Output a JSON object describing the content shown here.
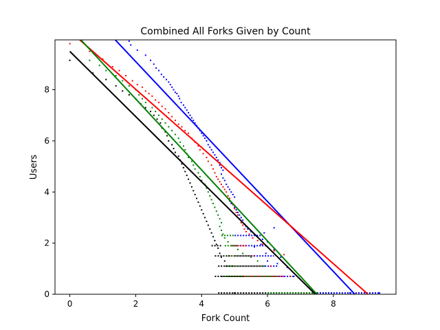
{
  "chart_data": {
    "type": "scatter",
    "title": "Combined All Forks Given by Count",
    "xlabel": "Fork Count",
    "ylabel": "Users",
    "xlim": [
      -0.45,
      9.9
    ],
    "ylim": [
      0,
      9.95
    ],
    "x_ticks": [
      "0",
      "2",
      "4",
      "6",
      "8"
    ],
    "y_ticks": [
      "0",
      "2",
      "4",
      "6",
      "8"
    ],
    "grid": false,
    "legend": "none",
    "series": [
      {
        "color": "#0000ff",
        "points": [
          [
            1.8,
            9.9
          ],
          [
            1.85,
            9.75
          ],
          [
            2.05,
            9.55
          ],
          [
            2.3,
            9.35
          ],
          [
            2.45,
            9.15
          ],
          [
            2.55,
            9.0
          ],
          [
            2.62,
            8.85
          ],
          [
            2.7,
            8.75
          ],
          [
            2.78,
            8.6
          ],
          [
            2.85,
            8.5
          ],
          [
            2.93,
            8.4
          ],
          [
            3.0,
            8.3
          ],
          [
            3.05,
            8.2
          ],
          [
            3.1,
            8.1
          ],
          [
            3.15,
            8.0
          ],
          [
            3.2,
            7.9
          ],
          [
            3.25,
            7.85
          ],
          [
            3.3,
            7.75
          ],
          [
            3.33,
            7.65
          ],
          [
            3.38,
            7.5
          ],
          [
            3.45,
            7.4
          ],
          [
            3.5,
            7.3
          ],
          [
            3.55,
            7.2
          ],
          [
            3.6,
            7.1
          ],
          [
            3.65,
            7.0
          ],
          [
            3.7,
            6.9
          ],
          [
            3.75,
            6.8
          ],
          [
            3.8,
            6.7
          ],
          [
            3.85,
            6.6
          ],
          [
            3.9,
            6.5
          ],
          [
            3.95,
            6.4
          ],
          [
            4.0,
            6.3
          ],
          [
            4.05,
            6.2
          ],
          [
            4.1,
            6.1
          ],
          [
            4.15,
            6.0
          ],
          [
            4.2,
            5.85
          ],
          [
            4.25,
            5.75
          ],
          [
            4.3,
            5.65
          ],
          [
            4.35,
            5.55
          ],
          [
            4.4,
            5.45
          ],
          [
            4.45,
            5.35
          ],
          [
            4.5,
            5.25
          ],
          [
            4.55,
            5.15
          ],
          [
            4.55,
            5.05
          ],
          [
            4.6,
            4.95
          ],
          [
            4.65,
            4.85
          ],
          [
            4.6,
            4.7
          ],
          [
            4.65,
            4.55
          ],
          [
            4.7,
            4.45
          ],
          [
            4.75,
            4.3
          ],
          [
            4.8,
            4.2
          ],
          [
            4.85,
            4.1
          ],
          [
            4.9,
            4.0
          ],
          [
            4.95,
            3.9
          ],
          [
            5.0,
            3.8
          ],
          [
            4.85,
            3.65
          ],
          [
            4.9,
            3.55
          ],
          [
            5.0,
            3.4
          ],
          [
            5.05,
            3.3
          ],
          [
            5.1,
            3.2
          ],
          [
            5.15,
            3.1
          ],
          [
            5.2,
            3.0
          ],
          [
            5.25,
            2.9
          ],
          [
            5.3,
            2.75
          ],
          [
            5.35,
            2.65
          ],
          [
            5.4,
            2.55
          ],
          [
            5.5,
            2.45
          ],
          [
            5.6,
            2.35
          ],
          [
            5.7,
            2.25
          ],
          [
            5.85,
            2.15
          ],
          [
            6.0,
            2.05
          ],
          [
            5.8,
            1.95
          ],
          [
            5.6,
            1.85
          ],
          [
            6.2,
            1.75
          ],
          [
            5.95,
            1.6
          ],
          [
            6.4,
            1.45
          ],
          [
            6.0,
            1.3
          ],
          [
            6.3,
            1.2
          ],
          [
            6.6,
            1.05
          ],
          [
            6.8,
            0.7
          ],
          [
            8.5,
            0.05
          ],
          [
            9.0,
            0.05
          ],
          [
            9.4,
            0.05
          ],
          [
            6.2,
            2.6
          ],
          [
            5.9,
            2.4
          ]
        ],
        "fit": [
          [
            1.05,
            10.4
          ],
          [
            8.65,
            0
          ]
        ]
      },
      {
        "color": "#ff0000",
        "points": [
          [
            0.0,
            9.8
          ],
          [
            0.6,
            9.5
          ],
          [
            0.8,
            9.35
          ],
          [
            1.0,
            9.2
          ],
          [
            1.3,
            8.9
          ],
          [
            1.5,
            8.75
          ],
          [
            1.7,
            8.55
          ],
          [
            1.9,
            8.35
          ],
          [
            2.05,
            8.2
          ],
          [
            2.2,
            8.1
          ],
          [
            2.3,
            7.95
          ],
          [
            2.4,
            7.85
          ],
          [
            2.5,
            7.75
          ],
          [
            2.6,
            7.6
          ],
          [
            2.7,
            7.5
          ],
          [
            2.8,
            7.35
          ],
          [
            2.9,
            7.25
          ],
          [
            3.0,
            7.1
          ],
          [
            3.1,
            6.95
          ],
          [
            3.2,
            6.8
          ],
          [
            3.3,
            6.65
          ],
          [
            3.4,
            6.55
          ],
          [
            3.5,
            6.4
          ],
          [
            3.6,
            6.3
          ],
          [
            3.7,
            6.1
          ],
          [
            3.8,
            5.95
          ],
          [
            3.9,
            5.8
          ],
          [
            3.95,
            5.65
          ],
          [
            4.05,
            5.5
          ],
          [
            4.15,
            5.35
          ],
          [
            4.2,
            5.2
          ],
          [
            4.3,
            5.05
          ],
          [
            4.35,
            4.9
          ],
          [
            4.4,
            4.75
          ],
          [
            4.45,
            4.6
          ],
          [
            4.5,
            4.5
          ],
          [
            4.55,
            4.4
          ],
          [
            4.6,
            4.3
          ],
          [
            4.65,
            4.2
          ],
          [
            4.7,
            4.1
          ],
          [
            4.75,
            4.0
          ],
          [
            4.8,
            3.85
          ],
          [
            4.85,
            3.75
          ],
          [
            4.9,
            3.6
          ],
          [
            4.95,
            3.5
          ],
          [
            5.0,
            3.35
          ],
          [
            5.05,
            3.2
          ],
          [
            5.1,
            3.1
          ],
          [
            5.15,
            2.95
          ],
          [
            5.2,
            2.8
          ],
          [
            5.25,
            2.7
          ],
          [
            5.3,
            2.55
          ],
          [
            5.35,
            2.45
          ],
          [
            5.45,
            2.35
          ],
          [
            5.55,
            2.2
          ],
          [
            5.7,
            2.1
          ],
          [
            5.85,
            1.95
          ],
          [
            6.0,
            1.85
          ],
          [
            6.2,
            1.7
          ],
          [
            6.5,
            1.55
          ],
          [
            6.1,
            1.1
          ],
          [
            6.7,
            0.7
          ],
          [
            7.5,
            0.05
          ]
        ],
        "fit": [
          [
            0.3,
            9.95
          ],
          [
            9.05,
            0
          ]
        ]
      },
      {
        "color": "#008000",
        "points": [
          [
            0.6,
            9.15
          ],
          [
            0.9,
            8.95
          ],
          [
            1.1,
            8.75
          ],
          [
            1.4,
            8.55
          ],
          [
            1.6,
            8.35
          ],
          [
            1.8,
            8.15
          ],
          [
            2.0,
            8.0
          ],
          [
            2.1,
            7.8
          ],
          [
            2.2,
            7.65
          ],
          [
            2.3,
            7.5
          ],
          [
            2.5,
            7.3
          ],
          [
            2.6,
            7.15
          ],
          [
            2.7,
            7.0
          ],
          [
            2.8,
            6.85
          ],
          [
            2.9,
            6.7
          ],
          [
            3.0,
            6.55
          ],
          [
            3.1,
            6.4
          ],
          [
            3.2,
            6.25
          ],
          [
            3.3,
            6.1
          ],
          [
            3.35,
            5.95
          ],
          [
            3.45,
            5.8
          ],
          [
            3.5,
            5.65
          ],
          [
            3.55,
            5.5
          ],
          [
            3.6,
            5.35
          ],
          [
            3.7,
            5.2
          ],
          [
            3.75,
            5.05
          ],
          [
            3.8,
            4.9
          ],
          [
            3.9,
            4.75
          ],
          [
            3.95,
            4.6
          ],
          [
            4.0,
            4.45
          ],
          [
            4.1,
            4.3
          ],
          [
            4.15,
            4.15
          ],
          [
            4.2,
            4.0
          ],
          [
            4.25,
            3.85
          ],
          [
            4.3,
            3.7
          ],
          [
            4.35,
            3.55
          ],
          [
            4.4,
            3.4
          ],
          [
            4.45,
            3.25
          ],
          [
            4.5,
            3.1
          ],
          [
            4.55,
            2.95
          ],
          [
            4.6,
            2.8
          ],
          [
            4.55,
            2.65
          ],
          [
            4.6,
            2.5
          ],
          [
            4.65,
            2.35
          ],
          [
            4.7,
            2.2
          ],
          [
            4.8,
            2.05
          ],
          [
            4.95,
            1.9
          ],
          [
            5.1,
            1.75
          ],
          [
            5.25,
            1.6
          ],
          [
            5.5,
            1.45
          ],
          [
            5.7,
            1.3
          ],
          [
            5.9,
            1.1
          ],
          [
            6.0,
            0.7
          ],
          [
            7.5,
            0.05
          ]
        ],
        "fit": [
          [
            0.3,
            10.0
          ],
          [
            7.5,
            0
          ]
        ]
      },
      {
        "color": "#000000",
        "points": [
          [
            0.0,
            9.15
          ],
          [
            0.7,
            8.65
          ],
          [
            1.1,
            8.4
          ],
          [
            1.4,
            8.15
          ],
          [
            1.6,
            7.95
          ],
          [
            1.8,
            7.8
          ],
          [
            2.0,
            7.65
          ],
          [
            2.15,
            7.45
          ],
          [
            2.3,
            7.3
          ],
          [
            2.45,
            7.15
          ],
          [
            2.55,
            7.0
          ],
          [
            2.65,
            6.85
          ],
          [
            2.75,
            6.7
          ],
          [
            2.8,
            6.5
          ],
          [
            2.9,
            6.35
          ],
          [
            2.95,
            6.2
          ],
          [
            3.0,
            6.0
          ],
          [
            3.1,
            5.85
          ],
          [
            3.15,
            5.7
          ],
          [
            3.2,
            5.55
          ],
          [
            3.3,
            5.4
          ],
          [
            3.35,
            5.25
          ],
          [
            3.4,
            5.1
          ],
          [
            3.45,
            4.95
          ],
          [
            3.5,
            4.8
          ],
          [
            3.55,
            4.65
          ],
          [
            3.6,
            4.5
          ],
          [
            3.65,
            4.35
          ],
          [
            3.7,
            4.2
          ],
          [
            3.75,
            4.05
          ],
          [
            3.8,
            3.9
          ],
          [
            3.85,
            3.75
          ],
          [
            3.9,
            3.6
          ],
          [
            3.95,
            3.45
          ],
          [
            4.0,
            3.3
          ],
          [
            4.05,
            3.15
          ],
          [
            4.1,
            3.0
          ],
          [
            4.15,
            2.85
          ],
          [
            4.2,
            2.7
          ],
          [
            4.25,
            2.55
          ],
          [
            4.3,
            2.4
          ],
          [
            4.35,
            2.25
          ],
          [
            4.4,
            2.1
          ],
          [
            4.45,
            1.95
          ],
          [
            4.5,
            1.8
          ],
          [
            4.55,
            1.6
          ],
          [
            4.6,
            1.45
          ],
          [
            4.7,
            1.3
          ],
          [
            4.75,
            1.1
          ],
          [
            4.6,
            0.7
          ],
          [
            5.0,
            0.05
          ]
        ],
        "fit": [
          [
            0.0,
            9.5
          ],
          [
            7.45,
            0
          ]
        ]
      }
    ],
    "bands": [
      {
        "color": "#0000ff",
        "y": 0.7,
        "x_from": 5.0,
        "x_to": 6.8
      },
      {
        "color": "#0000ff",
        "y": 1.1,
        "x_from": 5.0,
        "x_to": 6.3
      },
      {
        "color": "#0000ff",
        "y": 1.5,
        "x_from": 5.0,
        "x_to": 6.2
      },
      {
        "color": "#0000ff",
        "y": 1.9,
        "x_from": 5.0,
        "x_to": 6.0
      },
      {
        "color": "#0000ff",
        "y": 2.3,
        "x_from": 5.0,
        "x_to": 5.8
      },
      {
        "color": "#ff0000",
        "y": 0.7,
        "x_from": 4.8,
        "x_to": 6.5
      },
      {
        "color": "#ff0000",
        "y": 1.1,
        "x_from": 4.9,
        "x_to": 5.9
      },
      {
        "color": "#ff0000",
        "y": 1.5,
        "x_from": 4.9,
        "x_to": 5.6
      },
      {
        "color": "#ff0000",
        "y": 1.9,
        "x_from": 4.9,
        "x_to": 5.4
      },
      {
        "color": "#008000",
        "y": 0.7,
        "x_from": 4.6,
        "x_to": 6.3
      },
      {
        "color": "#008000",
        "y": 1.1,
        "x_from": 4.8,
        "x_to": 5.9
      },
      {
        "color": "#008000",
        "y": 1.5,
        "x_from": 4.8,
        "x_to": 5.5
      },
      {
        "color": "#008000",
        "y": 1.9,
        "x_from": 4.7,
        "x_to": 5.1
      },
      {
        "color": "#008000",
        "y": 2.3,
        "x_from": 4.6,
        "x_to": 5.0
      },
      {
        "color": "#000000",
        "y": 0.7,
        "x_from": 4.4,
        "x_to": 5.3
      },
      {
        "color": "#000000",
        "y": 1.1,
        "x_from": 4.5,
        "x_to": 5.0
      },
      {
        "color": "#000000",
        "y": 1.5,
        "x_from": 4.4,
        "x_to": 4.9
      },
      {
        "color": "#000000",
        "y": 1.9,
        "x_from": 4.3,
        "x_to": 4.6
      },
      {
        "color": "#000000",
        "y": 0.05,
        "x_from": 4.5,
        "x_to": 7.5
      },
      {
        "color": "#008000",
        "y": 0.05,
        "x_from": 6.0,
        "x_to": 8.0
      },
      {
        "color": "#0000ff",
        "y": 0.05,
        "x_from": 7.5,
        "x_to": 9.4
      }
    ]
  }
}
